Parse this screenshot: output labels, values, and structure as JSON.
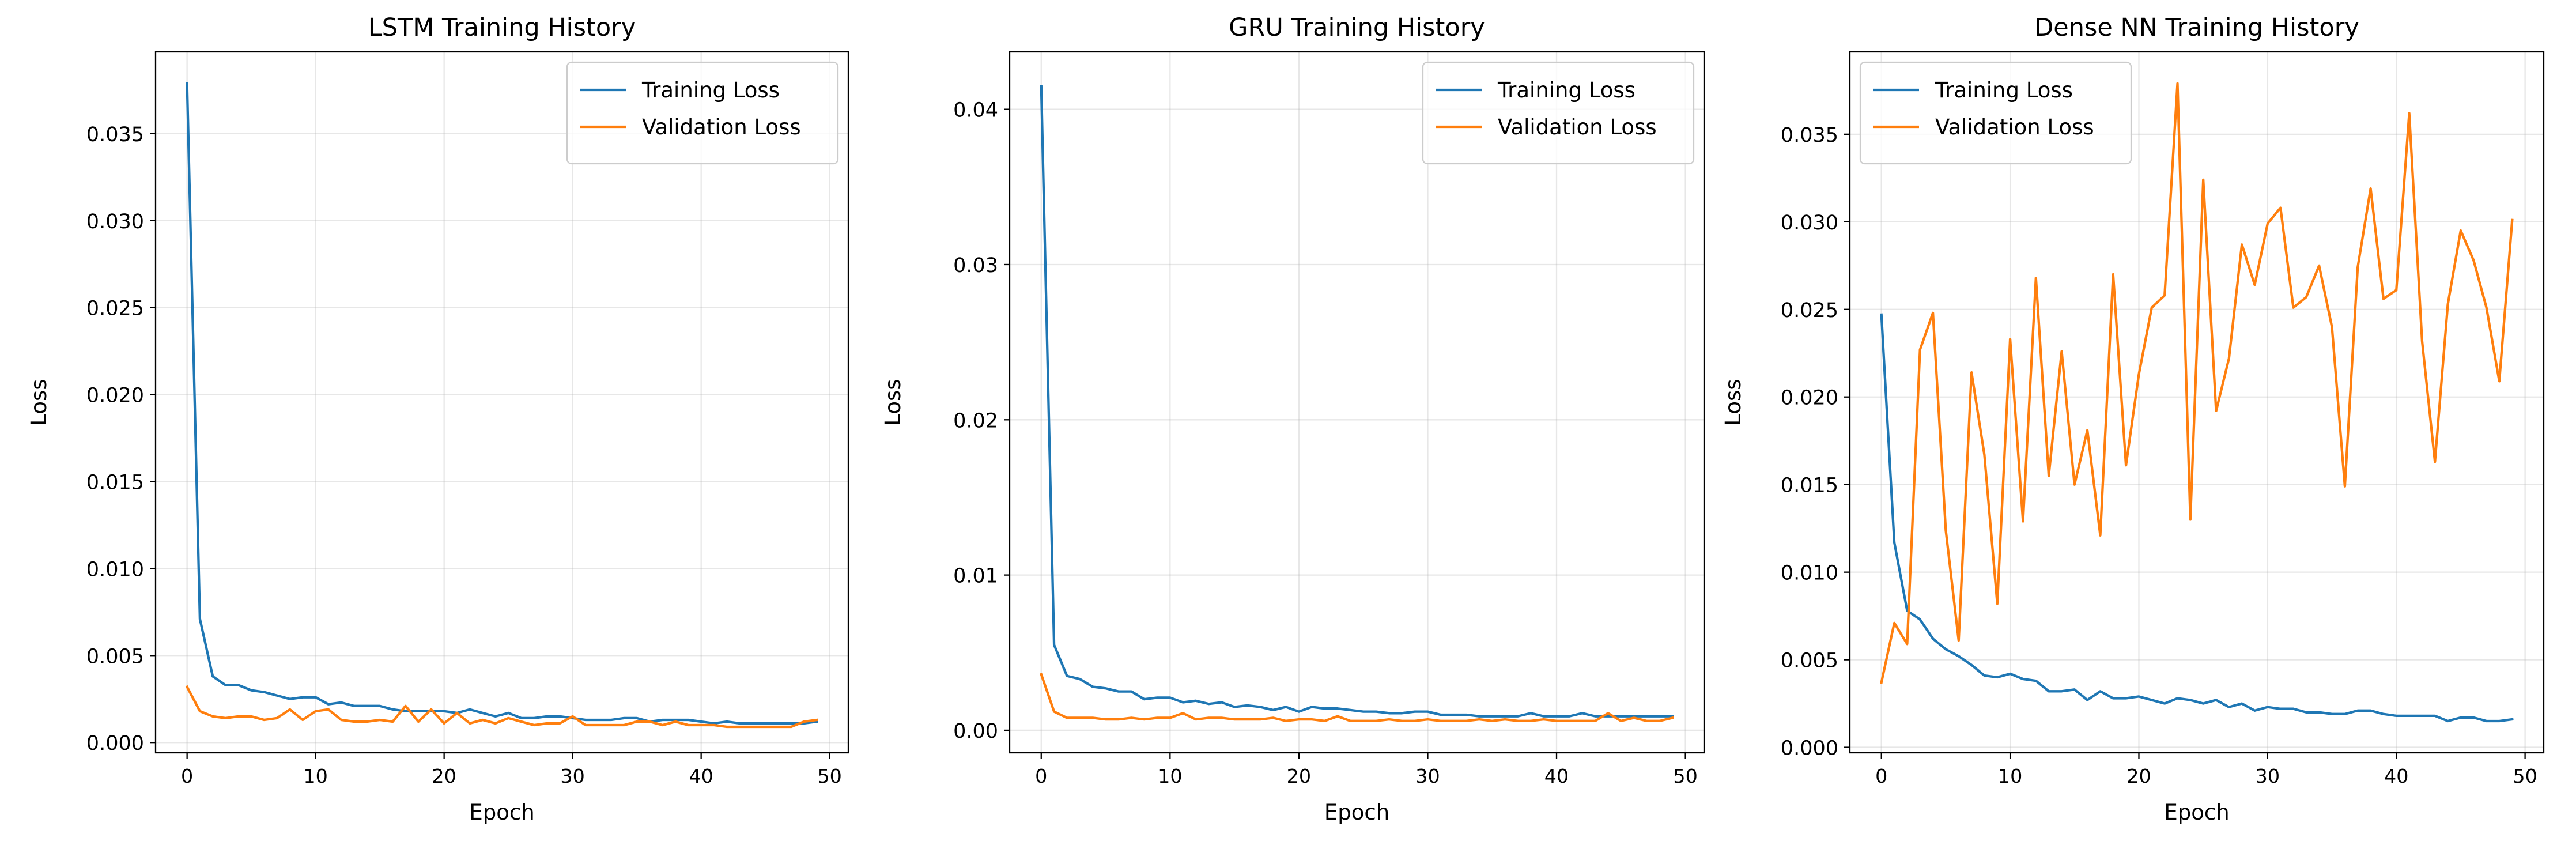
{
  "chart_data": [
    {
      "type": "line",
      "title": "LSTM Training History",
      "xlabel": "Epoch",
      "ylabel": "Loss",
      "xlim": [
        -2.45,
        51.45
      ],
      "ylim": [
        -0.00059,
        0.0397
      ],
      "xticks": [
        0,
        10,
        20,
        30,
        40,
        50
      ],
      "yticks": [
        0.0,
        0.005,
        0.01,
        0.015,
        0.02,
        0.025,
        0.03,
        0.035
      ],
      "ytick_labels": [
        "0.000",
        "0.005",
        "0.010",
        "0.015",
        "0.020",
        "0.025",
        "0.030",
        "0.035"
      ],
      "grid": true,
      "legend": "upper right",
      "x": [
        0,
        1,
        2,
        3,
        4,
        5,
        6,
        7,
        8,
        9,
        10,
        11,
        12,
        13,
        14,
        15,
        16,
        17,
        18,
        19,
        20,
        21,
        22,
        23,
        24,
        25,
        26,
        27,
        28,
        29,
        30,
        31,
        32,
        33,
        34,
        35,
        36,
        37,
        38,
        39,
        40,
        41,
        42,
        43,
        44,
        45,
        46,
        47,
        48,
        49
      ],
      "series": [
        {
          "name": "Training Loss",
          "color": "#1f77b4",
          "values": [
            0.0379,
            0.0071,
            0.0038,
            0.0033,
            0.0033,
            0.003,
            0.0029,
            0.0027,
            0.0025,
            0.0026,
            0.0026,
            0.0022,
            0.0023,
            0.0021,
            0.0021,
            0.0021,
            0.0019,
            0.0018,
            0.0018,
            0.0018,
            0.0018,
            0.0017,
            0.0019,
            0.0017,
            0.0015,
            0.0017,
            0.0014,
            0.0014,
            0.0015,
            0.0015,
            0.0014,
            0.0013,
            0.0013,
            0.0013,
            0.0014,
            0.0014,
            0.0012,
            0.0013,
            0.0013,
            0.0013,
            0.0012,
            0.0011,
            0.0012,
            0.0011,
            0.0011,
            0.0011,
            0.0011,
            0.0011,
            0.0011,
            0.0012
          ]
        },
        {
          "name": "Validation Loss",
          "color": "#ff7f0e",
          "values": [
            0.0032,
            0.0018,
            0.0015,
            0.0014,
            0.0015,
            0.0015,
            0.0013,
            0.0014,
            0.0019,
            0.0013,
            0.0018,
            0.0019,
            0.0013,
            0.0012,
            0.0012,
            0.0013,
            0.0012,
            0.0021,
            0.0012,
            0.0019,
            0.0011,
            0.0017,
            0.0011,
            0.0013,
            0.0011,
            0.0014,
            0.0012,
            0.001,
            0.0011,
            0.0011,
            0.0015,
            0.001,
            0.001,
            0.001,
            0.001,
            0.0012,
            0.0012,
            0.001,
            0.0012,
            0.001,
            0.001,
            0.001,
            0.0009,
            0.0009,
            0.0009,
            0.0009,
            0.0009,
            0.0009,
            0.0012,
            0.0013
          ]
        }
      ]
    },
    {
      "type": "line",
      "title": "GRU Training History",
      "xlabel": "Epoch",
      "ylabel": "Loss",
      "xlim": [
        -2.45,
        51.45
      ],
      "ylim": [
        -0.00145,
        0.0437
      ],
      "xticks": [
        0,
        10,
        20,
        30,
        40,
        50
      ],
      "yticks": [
        0.0,
        0.01,
        0.02,
        0.03,
        0.04
      ],
      "ytick_labels": [
        "0.00",
        "0.01",
        "0.02",
        "0.03",
        "0.04"
      ],
      "grid": true,
      "legend": "upper right",
      "x": [
        0,
        1,
        2,
        3,
        4,
        5,
        6,
        7,
        8,
        9,
        10,
        11,
        12,
        13,
        14,
        15,
        16,
        17,
        18,
        19,
        20,
        21,
        22,
        23,
        24,
        25,
        26,
        27,
        28,
        29,
        30,
        31,
        32,
        33,
        34,
        35,
        36,
        37,
        38,
        39,
        40,
        41,
        42,
        43,
        44,
        45,
        46,
        47,
        48,
        49
      ],
      "series": [
        {
          "name": "Training Loss",
          "color": "#1f77b4",
          "values": [
            0.0415,
            0.0055,
            0.0035,
            0.0033,
            0.0028,
            0.0027,
            0.0025,
            0.0025,
            0.002,
            0.0021,
            0.0021,
            0.0018,
            0.0019,
            0.0017,
            0.0018,
            0.0015,
            0.0016,
            0.0015,
            0.0013,
            0.0015,
            0.0012,
            0.0015,
            0.0014,
            0.0014,
            0.0013,
            0.0012,
            0.0012,
            0.0011,
            0.0011,
            0.0012,
            0.0012,
            0.001,
            0.001,
            0.001,
            0.0009,
            0.0009,
            0.0009,
            0.0009,
            0.0011,
            0.0009,
            0.0009,
            0.0009,
            0.0011,
            0.0009,
            0.0009,
            0.0009,
            0.0009,
            0.0009,
            0.0009,
            0.0009
          ]
        },
        {
          "name": "Validation Loss",
          "color": "#ff7f0e",
          "values": [
            0.0036,
            0.0012,
            0.0008,
            0.0008,
            0.0008,
            0.0007,
            0.0007,
            0.0008,
            0.0007,
            0.0008,
            0.0008,
            0.0011,
            0.0007,
            0.0008,
            0.0008,
            0.0007,
            0.0007,
            0.0007,
            0.0008,
            0.0006,
            0.0007,
            0.0007,
            0.0006,
            0.0009,
            0.0006,
            0.0006,
            0.0006,
            0.0007,
            0.0006,
            0.0006,
            0.0007,
            0.0006,
            0.0006,
            0.0006,
            0.0007,
            0.0006,
            0.0007,
            0.0006,
            0.0006,
            0.0007,
            0.0006,
            0.0006,
            0.0006,
            0.0006,
            0.0011,
            0.0006,
            0.0008,
            0.0006,
            0.0006,
            0.0008
          ]
        }
      ]
    },
    {
      "type": "line",
      "title": "Dense NN Training History",
      "xlabel": "Epoch",
      "ylabel": "Loss",
      "xlim": [
        -2.45,
        51.45
      ],
      "ylim": [
        -0.00031,
        0.0397
      ],
      "xticks": [
        0,
        10,
        20,
        30,
        40,
        50
      ],
      "yticks": [
        0.0,
        0.005,
        0.01,
        0.015,
        0.02,
        0.025,
        0.03,
        0.035
      ],
      "ytick_labels": [
        "0.000",
        "0.005",
        "0.010",
        "0.015",
        "0.020",
        "0.025",
        "0.030",
        "0.035"
      ],
      "grid": true,
      "legend": "upper left",
      "x": [
        0,
        1,
        2,
        3,
        4,
        5,
        6,
        7,
        8,
        9,
        10,
        11,
        12,
        13,
        14,
        15,
        16,
        17,
        18,
        19,
        20,
        21,
        22,
        23,
        24,
        25,
        26,
        27,
        28,
        29,
        30,
        31,
        32,
        33,
        34,
        35,
        36,
        37,
        38,
        39,
        40,
        41,
        42,
        43,
        44,
        45,
        46,
        47,
        48,
        49
      ],
      "series": [
        {
          "name": "Training Loss",
          "color": "#1f77b4",
          "values": [
            0.0247,
            0.0117,
            0.0078,
            0.0073,
            0.0062,
            0.0056,
            0.0052,
            0.0047,
            0.0041,
            0.004,
            0.0042,
            0.0039,
            0.0038,
            0.0032,
            0.0032,
            0.0033,
            0.0027,
            0.0032,
            0.0028,
            0.0028,
            0.0029,
            0.0027,
            0.0025,
            0.0028,
            0.0027,
            0.0025,
            0.0027,
            0.0023,
            0.0025,
            0.0021,
            0.0023,
            0.0022,
            0.0022,
            0.002,
            0.002,
            0.0019,
            0.0019,
            0.0021,
            0.0021,
            0.0019,
            0.0018,
            0.0018,
            0.0018,
            0.0018,
            0.0015,
            0.0017,
            0.0017,
            0.0015,
            0.0015,
            0.0016
          ]
        },
        {
          "name": "Validation Loss",
          "color": "#ff7f0e",
          "values": [
            0.0037,
            0.0071,
            0.0059,
            0.0227,
            0.0248,
            0.0124,
            0.0061,
            0.0214,
            0.0167,
            0.0082,
            0.0233,
            0.0129,
            0.0268,
            0.0155,
            0.0226,
            0.015,
            0.0181,
            0.0121,
            0.027,
            0.0161,
            0.0213,
            0.0251,
            0.0258,
            0.0379,
            0.013,
            0.0324,
            0.0192,
            0.0222,
            0.0287,
            0.0264,
            0.0299,
            0.0308,
            0.0251,
            0.0257,
            0.0275,
            0.024,
            0.0149,
            0.0274,
            0.0319,
            0.0256,
            0.0261,
            0.0362,
            0.0232,
            0.0163,
            0.0253,
            0.0295,
            0.0278,
            0.0251,
            0.0209,
            0.0301
          ]
        }
      ]
    }
  ]
}
